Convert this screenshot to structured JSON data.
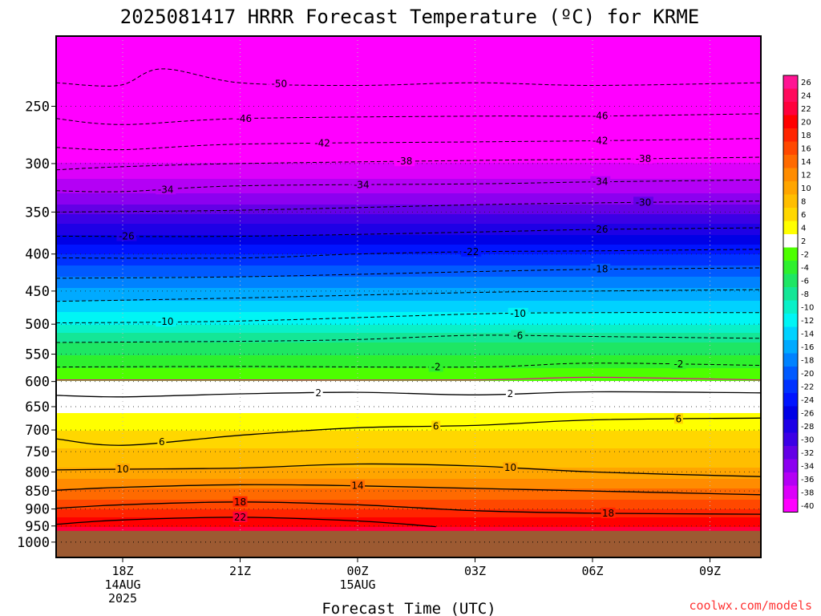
{
  "title": "2025081417 HRRR Forecast Temperature (ºC) for KRME",
  "x_axis_title": "Forecast Time (UTC)",
  "credit": "coolwx.com/models",
  "chart_data": {
    "type": "heatmap",
    "title": "2025081417 HRRR Forecast Temperature (ºC) for KRME",
    "xlabel": "Forecast Time (UTC)",
    "ylabel": "",
    "y_scale": "log",
    "y_inverted": true,
    "ylim": [
      1050,
      200
    ],
    "xlim_hours": [
      -1.7,
      16.3
    ],
    "y_ticks": [
      250,
      300,
      350,
      400,
      450,
      500,
      550,
      600,
      650,
      700,
      750,
      800,
      850,
      900,
      950,
      1000
    ],
    "x_ticks": [
      {
        "hour": 0,
        "lines": [
          "18Z",
          "14AUG",
          "2025"
        ]
      },
      {
        "hour": 3,
        "lines": [
          "21Z"
        ]
      },
      {
        "hour": 6,
        "lines": [
          "00Z",
          "15AUG"
        ]
      },
      {
        "hour": 9,
        "lines": [
          "03Z"
        ]
      },
      {
        "hour": 12,
        "lines": [
          "06Z"
        ]
      },
      {
        "hour": 15,
        "lines": [
          "09Z"
        ]
      }
    ],
    "ground_pressure": 965,
    "ground_color": "#9c5a32",
    "temperature_profile": [
      {
        "p": 200,
        "t": -58
      },
      {
        "p": 230,
        "t": -51
      },
      {
        "p": 250,
        "t": -47
      },
      {
        "p": 275,
        "t": -42
      },
      {
        "p": 300,
        "t": -38
      },
      {
        "p": 330,
        "t": -34
      },
      {
        "p": 370,
        "t": -27
      },
      {
        "p": 400,
        "t": -22
      },
      {
        "p": 430,
        "t": -18
      },
      {
        "p": 500,
        "t": -10
      },
      {
        "p": 530,
        "t": -6
      },
      {
        "p": 575,
        "t": -2
      },
      {
        "p": 600,
        "t": 0
      },
      {
        "p": 630,
        "t": 2
      },
      {
        "p": 700,
        "t": 6
      },
      {
        "p": 790,
        "t": 10
      },
      {
        "p": 845,
        "t": 14
      },
      {
        "p": 900,
        "t": 18
      },
      {
        "p": 940,
        "t": 21
      },
      {
        "p": 965,
        "t": 23
      }
    ],
    "contours": [
      {
        "value": "-50",
        "dashed": true,
        "points": [
          [
            -1.7,
            232
          ],
          [
            -0.1,
            234
          ],
          [
            1,
            222
          ],
          [
            3,
            232
          ],
          [
            6,
            234
          ],
          [
            9,
            232
          ],
          [
            12,
            234
          ],
          [
            16.3,
            232
          ]
        ],
        "label_at": 2,
        "label_hour": 4
      },
      {
        "value": "-46",
        "dashed": true,
        "points": [
          [
            -1.7,
            260
          ],
          [
            0,
            265
          ],
          [
            3,
            260
          ],
          [
            9,
            258
          ],
          [
            12,
            258
          ],
          [
            16.3,
            256
          ]
        ],
        "labels": [
          3.1,
          12.2
        ]
      },
      {
        "value": "-42",
        "dashed": true,
        "points": [
          [
            -1.7,
            285
          ],
          [
            0,
            287
          ],
          [
            3,
            282
          ],
          [
            9,
            280
          ],
          [
            12,
            279
          ],
          [
            16.3,
            277
          ]
        ],
        "labels": [
          5.1,
          12.2
        ]
      },
      {
        "value": "-38",
        "dashed": true,
        "points": [
          [
            -1.7,
            306
          ],
          [
            0,
            303
          ],
          [
            3,
            300
          ],
          [
            9,
            297
          ],
          [
            12,
            296
          ],
          [
            16.3,
            294
          ]
        ],
        "labels": [
          7.2,
          13.3
        ]
      },
      {
        "value": "-34",
        "dashed": true,
        "points": [
          [
            -1.7,
            327
          ],
          [
            0,
            328
          ],
          [
            3,
            322
          ],
          [
            9,
            320
          ],
          [
            12,
            318
          ],
          [
            16.3,
            316
          ]
        ],
        "labels": [
          1.1,
          6.1,
          12.2
        ]
      },
      {
        "value": "-30",
        "dashed": true,
        "points": [
          [
            -1.7,
            350
          ],
          [
            3,
            348
          ],
          [
            9,
            342
          ],
          [
            12,
            340
          ],
          [
            16.3,
            338
          ]
        ],
        "labels": [
          13.3
        ]
      },
      {
        "value": "-26",
        "dashed": true,
        "points": [
          [
            -1.7,
            378
          ],
          [
            3,
            378
          ],
          [
            9,
            373
          ],
          [
            12,
            370
          ],
          [
            16.3,
            368
          ]
        ],
        "labels": [
          0.1,
          12.2
        ]
      },
      {
        "value": "-22",
        "dashed": true,
        "points": [
          [
            -1.7,
            405
          ],
          [
            3,
            405
          ],
          [
            6,
            400
          ],
          [
            9,
            397
          ],
          [
            12,
            396
          ],
          [
            16.3,
            394
          ]
        ],
        "labels": [
          8.9
        ]
      },
      {
        "value": "-18",
        "dashed": true,
        "points": [
          [
            -1.7,
            432
          ],
          [
            3,
            430
          ],
          [
            9,
            423
          ],
          [
            12,
            420
          ],
          [
            16.3,
            418
          ]
        ],
        "labels": [
          12.2
        ]
      },
      {
        "value": "-14",
        "dashed": true,
        "points": [
          [
            -1.7,
            465
          ],
          [
            3,
            460
          ],
          [
            9,
            452
          ],
          [
            12,
            450
          ],
          [
            16.3,
            448
          ]
        ],
        "labels": []
      },
      {
        "value": "-10",
        "dashed": true,
        "points": [
          [
            -1.7,
            498
          ],
          [
            3,
            495
          ],
          [
            9,
            484
          ],
          [
            12,
            482
          ],
          [
            16.3,
            482
          ]
        ],
        "labels": [
          1.1,
          10.1
        ]
      },
      {
        "value": "-6",
        "dashed": true,
        "points": [
          [
            -1.7,
            530
          ],
          [
            3,
            528
          ],
          [
            6,
            525
          ],
          [
            9,
            518
          ],
          [
            12,
            520
          ],
          [
            16.3,
            523
          ]
        ],
        "labels": [
          10.1
        ]
      },
      {
        "value": "-2",
        "dashed": true,
        "points": [
          [
            -1.7,
            573
          ],
          [
            3,
            572
          ],
          [
            9,
            573
          ],
          [
            12,
            566
          ],
          [
            16.3,
            570
          ]
        ],
        "labels": [
          8.0,
          14.2
        ]
      },
      {
        "value": "0",
        "dashed": false,
        "color": "#e0108a",
        "points": [
          [
            -1.7,
            597
          ],
          [
            3,
            597
          ],
          [
            9,
            597
          ],
          [
            12,
            592
          ],
          [
            16.3,
            597
          ]
        ],
        "labels": []
      },
      {
        "value": "2",
        "dashed": false,
        "points": [
          [
            -1.7,
            627
          ],
          [
            0,
            630
          ],
          [
            3,
            624
          ],
          [
            6,
            621
          ],
          [
            9,
            626
          ],
          [
            12,
            620
          ],
          [
            16.3,
            622
          ]
        ],
        "labels": [
          5.0,
          9.9
        ]
      },
      {
        "value": "6",
        "dashed": false,
        "points": [
          [
            -1.7,
            720
          ],
          [
            0,
            735
          ],
          [
            3,
            712
          ],
          [
            6,
            695
          ],
          [
            9,
            690
          ],
          [
            12,
            678
          ],
          [
            16.3,
            674
          ]
        ],
        "labels": [
          1.0,
          8.0,
          14.2
        ]
      },
      {
        "value": "10",
        "dashed": false,
        "points": [
          [
            -1.7,
            795
          ],
          [
            0,
            793
          ],
          [
            3,
            790
          ],
          [
            6,
            780
          ],
          [
            9,
            785
          ],
          [
            12,
            800
          ],
          [
            16.3,
            812
          ]
        ],
        "labels": [
          0.0,
          9.9
        ]
      },
      {
        "value": "14",
        "dashed": false,
        "points": [
          [
            -1.7,
            848
          ],
          [
            0,
            840
          ],
          [
            3,
            833
          ],
          [
            6,
            836
          ],
          [
            9,
            843
          ],
          [
            12,
            850
          ],
          [
            16.3,
            860
          ]
        ],
        "labels": [
          6.0
        ]
      },
      {
        "value": "18",
        "dashed": false,
        "points": [
          [
            -1.7,
            898
          ],
          [
            0,
            888
          ],
          [
            3,
            880
          ],
          [
            6,
            888
          ],
          [
            9,
            905
          ],
          [
            12,
            912
          ],
          [
            16.3,
            915
          ]
        ],
        "labels": [
          3.0,
          12.4
        ]
      },
      {
        "value": "22",
        "dashed": false,
        "points": [
          [
            -1.7,
            945
          ],
          [
            0,
            932
          ],
          [
            3,
            924
          ],
          [
            6,
            935
          ],
          [
            8,
            952
          ]
        ],
        "labels": [
          3.0
        ]
      }
    ],
    "legend": {
      "type": "colorbar",
      "placement": "right",
      "levels": [
        {
          "value": "26",
          "color": "#ff1493"
        },
        {
          "value": "24",
          "color": "#ff0a5c"
        },
        {
          "value": "22",
          "color": "#ff003c"
        },
        {
          "value": "20",
          "color": "#ff0000"
        },
        {
          "value": "18",
          "color": "#ff2400"
        },
        {
          "value": "16",
          "color": "#ff4800"
        },
        {
          "value": "14",
          "color": "#ff6a00"
        },
        {
          "value": "12",
          "color": "#ff8c00"
        },
        {
          "value": "10",
          "color": "#ffa500"
        },
        {
          "value": "8",
          "color": "#ffbe00"
        },
        {
          "value": "6",
          "color": "#ffd700"
        },
        {
          "value": "4",
          "color": "#ffff00"
        },
        {
          "value": "2",
          "color": "#ffffff"
        },
        {
          "value": "-2",
          "color": "#4dff00"
        },
        {
          "value": "-4",
          "color": "#2ef02e"
        },
        {
          "value": "-6",
          "color": "#1ee664"
        },
        {
          "value": "-8",
          "color": "#14e696"
        },
        {
          "value": "-10",
          "color": "#0af0c8"
        },
        {
          "value": "-12",
          "color": "#00f5f5"
        },
        {
          "value": "-14",
          "color": "#00d2ff"
        },
        {
          "value": "-16",
          "color": "#00aaff"
        },
        {
          "value": "-18",
          "color": "#0082ff"
        },
        {
          "value": "-20",
          "color": "#005aff"
        },
        {
          "value": "-22",
          "color": "#0032ff"
        },
        {
          "value": "-24",
          "color": "#0014ff"
        },
        {
          "value": "-26",
          "color": "#0000e6"
        },
        {
          "value": "-28",
          "color": "#1e00e6"
        },
        {
          "value": "-30",
          "color": "#3c00e6"
        },
        {
          "value": "-32",
          "color": "#6400e6"
        },
        {
          "value": "-34",
          "color": "#8c00f0"
        },
        {
          "value": "-36",
          "color": "#b400f5"
        },
        {
          "value": "-38",
          "color": "#dc00fa"
        },
        {
          "value": "-40",
          "color": "#ff00ff"
        }
      ]
    }
  }
}
